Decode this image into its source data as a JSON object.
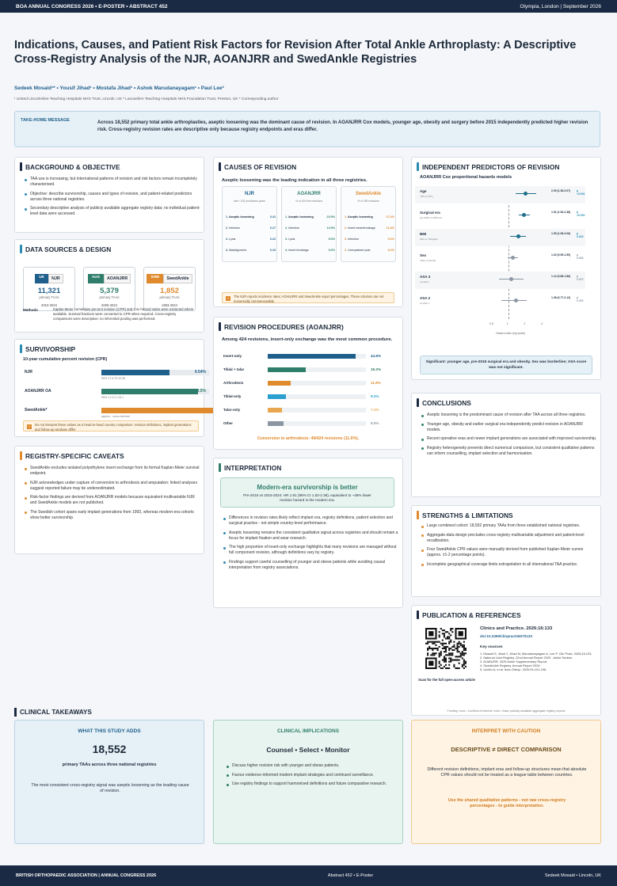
{
  "topbar": {
    "left": "BOA ANNUAL CONGRESS 2026  •  E-POSTER  •  ABSTRACT 452",
    "right": "Olympia, London  |  September 2026"
  },
  "title": "Indications, Causes, and Patient Risk Factors for Revision After Total Ankle Arthroplasty: A Descriptive Cross-Registry Analysis of the NJR, AOANJRR and SwedAnkle Registries",
  "authors": "Sedeek Mosaid¹* •  Yousif Jihad¹ •  Mostafa Jihad¹ •  Ashok Marudanayagam¹ •  Paul Lee²",
  "affiliations": "¹ United Lincolnshire Teaching Hospitals NHS Trust, Lincoln, UK   ² Lancashire Teaching Hospitals NHS Foundation Trust, Preston, UK   * Corresponding author",
  "takehome": {
    "label": "TAKE-HOME MESSAGE",
    "text": "Across 18,552 primary total ankle arthroplasties, aseptic loosening was the dominant cause of revision. In AOANJRR Cox models, younger age, obesity and surgery before 2015 independently predicted higher revision risk. Cross-registry revision rates are descriptive only because registry endpoints and eras differ."
  },
  "background": {
    "title": "BACKGROUND & OBJECTIVE",
    "items": [
      "TAA use is increasing, but international patterns of revision and risk factors remain incompletely characterised.",
      "Objective: describe survivorship, causes and types of revision, and patient-related predictors across three national registries.",
      "Secondary descriptive analysis of publicly available aggregate registry data; no individual patient-level data were accessed."
    ]
  },
  "datasources": {
    "title": "DATA SOURCES & DESIGN",
    "registries": [
      {
        "cc": "UK",
        "name": "NJR",
        "num": "11,321",
        "sub": "primary TAAs",
        "years": "2010-2024",
        "color": "#1f5f8b"
      },
      {
        "cc": "AUS",
        "name": "AOANJRR",
        "num": "5,379",
        "sub": "primary TAAs",
        "years": "2006-2024",
        "color": "#2f7d6b"
      },
      {
        "cc": "SWE",
        "name": "SwedAnkle",
        "num": "1,852",
        "sub": "primary TAAs",
        "years": "1993-2024",
        "color": "#e08a2e"
      }
    ],
    "methods_label": "Methods",
    "methods": "Kaplan-Meier cumulative percent revision (CPR) and Cox hazard ratios were extracted where available. Survival fractions were converted to CPR when required. Cross-registry comparisons were descriptive; no inferential pooling was performed."
  },
  "survivorship": {
    "title": "SURVIVORSHIP",
    "subtitle": "10-year cumulative percent revision (CPR)",
    "rows": [
      {
        "name": "NJR",
        "value": "9.54%",
        "pct": 9.54,
        "ci": "95% CI 8.79-10.36",
        "color": "#1f5f8b"
      },
      {
        "name": "AOANJRR OA",
        "value": "13.5%",
        "pct": 13.5,
        "ci": "95% CI 12.2-15.1",
        "color": "#2f7d6b"
      },
      {
        "name": "SwedAnkle*",
        "value": "",
        "pct": 23,
        "ci": "approx., curve-derived",
        "color": "#e08a2e"
      }
    ],
    "note": "Do not interpret these values as a head-to-head country comparison: revision definitions, implant generations and follow-up windows differ."
  },
  "caveats": {
    "title": "REGISTRY-SPECIFIC CAVEATS",
    "items": [
      "SwedAnkle excludes isolated polyethylene insert exchange from its formal Kaplan-Meier survival endpoint.",
      "NJR acknowledges under-capture of conversion to arthrodesis and amputation; linked analyses suggest reported failure may be underestimated.",
      "Risk-factor findings are derived from AOANJRR models because equivalent multivariable NJR and SwedAnkle models are not published.",
      "The Swedish cohort spans early implant generations from 1993, whereas modern-era cohorts show better survivorship."
    ]
  },
  "causes": {
    "title": "CAUSES OF REVISION",
    "subtitle": "Aseptic loosening was the leading indication in all three registries.",
    "cols": [
      {
        "name": "NJR",
        "sub": "rate / 100 prosthesis-years",
        "color": "#1f5f8b",
        "items": [
          {
            "n": "1.",
            "l": "Aseptic loosening",
            "v": "0.41"
          },
          {
            "n": "2.",
            "l": "Infection",
            "v": "0.27"
          },
          {
            "n": "3.",
            "l": "Lysis",
            "v": "0.22"
          },
          {
            "n": "4.",
            "l": "Malalignment",
            "v": "0.19"
          }
        ]
      },
      {
        "name": "AOANJRR",
        "sub": "% of 424 first revisions",
        "color": "#2f7d6b",
        "items": [
          {
            "n": "1.",
            "l": "Aseptic loosening",
            "v": "23.9%"
          },
          {
            "n": "2.",
            "l": "Infection",
            "v": "14.9%"
          },
          {
            "n": "3.",
            "l": "Lysis",
            "v": "9.0%"
          },
          {
            "n": "4.",
            "l": "Insert breakage",
            "v": "9.0%"
          }
        ]
      },
      {
        "name": "SwedAnkle",
        "sub": "% of 390 revisions",
        "color": "#e08a2e",
        "items": [
          {
            "n": "1.",
            "l": "Aseptic loosening",
            "v": "27.4%"
          },
          {
            "n": "2.",
            "l": "Insert wear/breakage",
            "v": "11.8%"
          },
          {
            "n": "3.",
            "l": "Infection",
            "v": "9.6%"
          },
          {
            "n": "4.",
            "l": "Unexplained pain",
            "v": "8.2%"
          }
        ]
      }
    ],
    "note": "The NJR reports incidence rates; AOANJRR and SwedAnkle report percentages. These columns are not numerically commensurable."
  },
  "procedures": {
    "title": "REVISION PROCEDURES (AOANJRR)",
    "subtitle": "Among 424 revisions, insert-only exchange was the most common procedure.",
    "rows": [
      {
        "name": "Insert-only",
        "value": "44.8%",
        "pct": 44.8,
        "color": "#1f5f8b"
      },
      {
        "name": "Tibial + talar",
        "value": "19.3%",
        "pct": 19.3,
        "color": "#2f7d6b"
      },
      {
        "name": "Arthrodesis",
        "value": "11.6%",
        "pct": 11.6,
        "color": "#e08a2e"
      },
      {
        "name": "Tibial-only",
        "value": "9.2%",
        "pct": 9.2,
        "color": "#2a9fd0"
      },
      {
        "name": "Talar-only",
        "value": "7.1%",
        "pct": 7.1,
        "color": "#e8a64f"
      },
      {
        "name": "Other",
        "value": "8.0%",
        "pct": 8.0,
        "color": "#8c96a3"
      }
    ],
    "footer": "Conversion to arthrodesis: 49/424 revisions (11.6%)."
  },
  "interpretation": {
    "title": "INTERPRETATION",
    "box_title": "Modern-era survivorship is better",
    "box_text": "Pre-2015 vs 2015-2024: HR 1.91 (95% CI 1.53-2.38), equivalent to ~48% lower revision hazard in the modern era.",
    "items": [
      "Differences in revision rates likely reflect implant era, registry definitions, patient selection and surgical practice - not simple country-level performance.",
      "Aseptic loosening remains the consistent qualitative signal across registries and should remain a focus for implant fixation and wear research.",
      "The high proportion of insert-only exchange highlights that many revisions are managed without full component revision, although definitions vary by registry.",
      "Findings support careful counselling of younger and obese patients while avoiding causal interpretation from registry associations."
    ]
  },
  "predictors": {
    "title": "INDEPENDENT PREDICTORS OF REVISION",
    "subtitle": "AOANJRR Cox proportional hazards models",
    "axis_label": "Hazard ratio (log scale)",
    "ticks": [
      "0.5",
      "1",
      "2",
      "4"
    ],
    "rows": [
      {
        "name": "Age",
        "sub": "<55 vs ≥75 y",
        "hr": "2.00 (1.36-3.07)",
        "p": "p <0.001",
        "est": 2.0,
        "lo": 1.36,
        "hi": 3.07,
        "color": "#1f6e8b"
      },
      {
        "name": "Surgical era",
        "sub": "pre-2015 vs 2015-24",
        "hr": "1.91 (1.53-2.38)",
        "p": "p <0.001",
        "est": 1.91,
        "lo": 1.53,
        "hi": 2.38,
        "color": "#1f6e8b"
      },
      {
        "name": "BMI",
        "sub": "≥30 vs <30 kg/m²",
        "hr": "1.50 (1.08-2.06)",
        "p": "p 0.023",
        "est": 1.5,
        "lo": 1.08,
        "hi": 2.06,
        "color": "#1f6e8b"
      },
      {
        "name": "Sex",
        "sub": "male vs female",
        "hr": "1.22 (0.99-1.50)",
        "p": "p 0.063",
        "est": 1.22,
        "lo": 0.99,
        "hi": 1.5,
        "color": "#8c96a3"
      },
      {
        "name": "ASA 3",
        "sub": "vs ASA 1",
        "hr": "1.12 (0.68-1.86)",
        "p": "p 0.670",
        "est": 1.12,
        "lo": 0.68,
        "hi": 1.86,
        "color": "#8c96a3"
      },
      {
        "name": "ASA 2",
        "sub": "vs ASA 1",
        "hr": "1.36 (0.77-2.12)",
        "p": "p 0.300",
        "est": 1.36,
        "lo": 0.77,
        "hi": 2.12,
        "color": "#8c96a3"
      }
    ],
    "note": "Significant: younger age, pre-2015 surgical era and obesity. Sex was borderline; ASA score was not significant."
  },
  "conclusions": {
    "title": "CONCLUSIONS",
    "items": [
      "Aseptic loosening is the predominant cause of revision after TAA across all three registries.",
      "Younger age, obesity and earlier surgical era independently predict revision in AOANJRR models.",
      "Recent operative eras and newer implant generations are associated with improved survivorship.",
      "Registry heterogeneity prevents direct numerical comparison, but consistent qualitative patterns can inform counselling, implant selection and harmonisation."
    ]
  },
  "strengths": {
    "title": "STRENGTHS & LIMITATIONS",
    "items": [
      "Large combined cohort: 18,552 primary TAAs from three established national registries.",
      "Aggregate-data design precludes cross-registry multivariable adjustment and patient-level recalibration.",
      "Four SwedAnkle CPR values were manually derived from published Kaplan-Meier curves (approx. ±1-2 percentage points).",
      "Incomplete geographical coverage limits extrapolation to all international TAA practice."
    ]
  },
  "publication": {
    "title": "PUBLICATION & REFERENCES",
    "journal": "Clinics and Practice. 2026;16:133",
    "doi": "doi:10.3390/clinpract16070133",
    "refs_label": "Key sources",
    "refs": "1. Mosaid S, Jihad Y, Jihad M, Marudanayagam A, Lee P. Clin Pract. 2026;16:133.\n2. National Joint Registry. 22nd Annual Report 2025 - Ankle Section.\n3. AOANJRR. 2025 Ankle Supplementary Report.\n4. SwedAnkle Registry. Annual Report 2024.\n5. Undén A, et al. Acta Orthop. 2020;91:191-196.",
    "scan": "Scan for the full open-access article",
    "footer": "Funding: none  •  Conflicts of interest: none  •  Data: publicly available aggregate registry reports"
  },
  "takeaways": {
    "title": "CLINICAL TAKEAWAYS",
    "adds": {
      "h": "WHAT THIS STUDY ADDS",
      "big": "18,552",
      "sub": "primary TAAs across three national registries",
      "text": "The most consistent cross-registry signal was aseptic loosening as the leading cause of revision."
    },
    "implications": {
      "h": "CLINICAL IMPLICATIONS",
      "big": "Counsel • Select • Monitor",
      "items": [
        "Discuss higher revision risk with younger and obese patients.",
        "Favour evidence-informed modern implant strategies and continued surveillance.",
        "Use registry findings to support harmonised definitions and future comparative research."
      ]
    },
    "caution": {
      "h": "INTERPRET WITH CAUTION",
      "big": "DESCRIPTIVE ≠ DIRECT COMPARISON",
      "text": "Different revision definitions, implant eras and follow-up structures mean that absolute CPR values should not be treated as a league table between countries.",
      "emph": "Use the shared qualitative patterns - not raw cross-registry percentages - to guide interpretation."
    }
  },
  "bottombar": {
    "left": "BRITISH ORTHOPAEDIC ASSOCIATION  |  ANNUAL CONGRESS 2026",
    "center": "Abstract 452  •  E-Poster",
    "right": "Sedeek Mosaid  •  Lincoln, UK"
  }
}
